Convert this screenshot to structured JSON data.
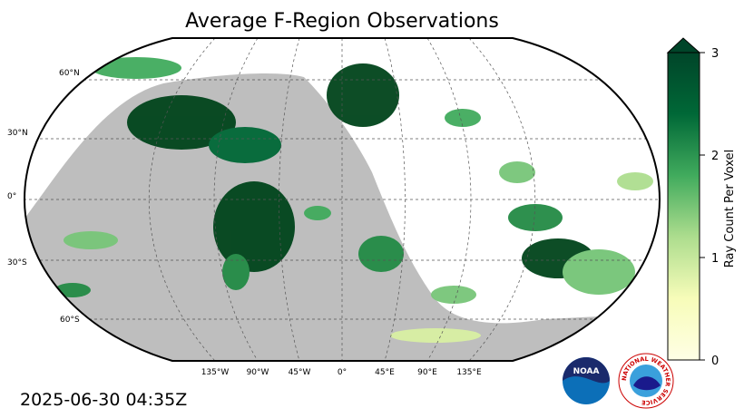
{
  "title": "Average F-Region Observations",
  "timestamp": "2025-06-30 04:35Z",
  "map": {
    "lat_labels": [
      "60°N",
      "30°N",
      "0°",
      "30°S",
      "60°S"
    ],
    "lon_labels": [
      "135°W",
      "90°W",
      "45°W",
      "0°",
      "45°E",
      "90°E",
      "135°E"
    ]
  },
  "colorbar": {
    "label": "Ray Count Per Voxel",
    "lim": [
      0,
      3
    ],
    "ticks": [
      0,
      1,
      2,
      3
    ]
  },
  "logos": {
    "noaa": "NOAA",
    "nws": "NATIONAL WEATHER SERVICE"
  }
}
